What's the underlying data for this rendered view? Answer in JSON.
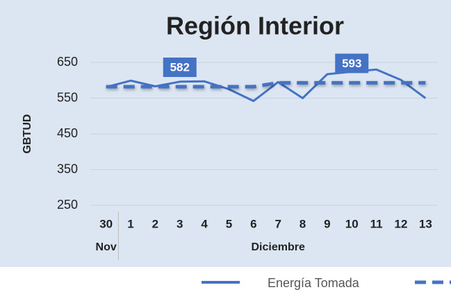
{
  "chart_data": {
    "type": "line",
    "title": "Región Interior",
    "y_label": "GBTUD",
    "categories": [
      "30",
      "1",
      "2",
      "3",
      "4",
      "5",
      "6",
      "7",
      "8",
      "9",
      "10",
      "11",
      "12",
      "13"
    ],
    "groups": [
      {
        "label": "Nov",
        "start": 0
      },
      {
        "label": "Diciembre",
        "start": 1
      }
    ],
    "series": [
      {
        "name": "Energía Tomada",
        "color": "#4472c4",
        "style": "solid",
        "values": [
          581,
          599,
          583,
          596,
          597,
          575,
          542,
          595,
          550,
          617,
          624,
          630,
          601,
          550
        ]
      },
      {
        "color": "#4472c4",
        "style": "dashed",
        "values": [
          582,
          582,
          582,
          582,
          582,
          582,
          582,
          593,
          593,
          593,
          593,
          593,
          593,
          593
        ],
        "value_labels": [
          null,
          null,
          null,
          "582",
          null,
          null,
          null,
          null,
          null,
          null,
          "593",
          null,
          null,
          null
        ]
      }
    ],
    "ylim": [
      250,
      650
    ],
    "yticks": [
      250,
      350,
      450,
      550,
      650
    ],
    "grid": true
  }
}
